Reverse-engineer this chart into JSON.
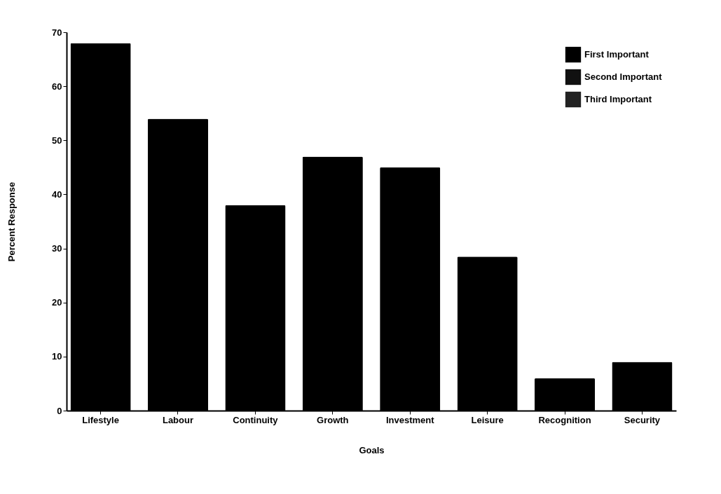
{
  "chart_data": {
    "type": "bar",
    "xlabel": "Goals",
    "ylabel": "Percent Response",
    "categories": [
      "Lifestyle",
      "Labour",
      "Continuity",
      "Growth",
      "Investment",
      "Leisure",
      "Recognition",
      "Security"
    ],
    "series": [
      {
        "name": "First Important",
        "color": "#000000",
        "values": [
          68,
          54,
          38,
          47,
          45,
          28.5,
          6,
          9
        ]
      },
      {
        "name": "Second Important",
        "color": "#111111",
        "values": [
          null,
          null,
          null,
          null,
          null,
          null,
          null,
          null
        ]
      },
      {
        "name": "Third Important",
        "color": "#222222",
        "values": [
          null,
          null,
          null,
          null,
          null,
          null,
          null,
          null
        ]
      }
    ],
    "ylim": [
      0,
      70
    ],
    "yticks": [
      0,
      10,
      20,
      30,
      40,
      50,
      60,
      70
    ],
    "grid": false,
    "legend": "top right"
  }
}
